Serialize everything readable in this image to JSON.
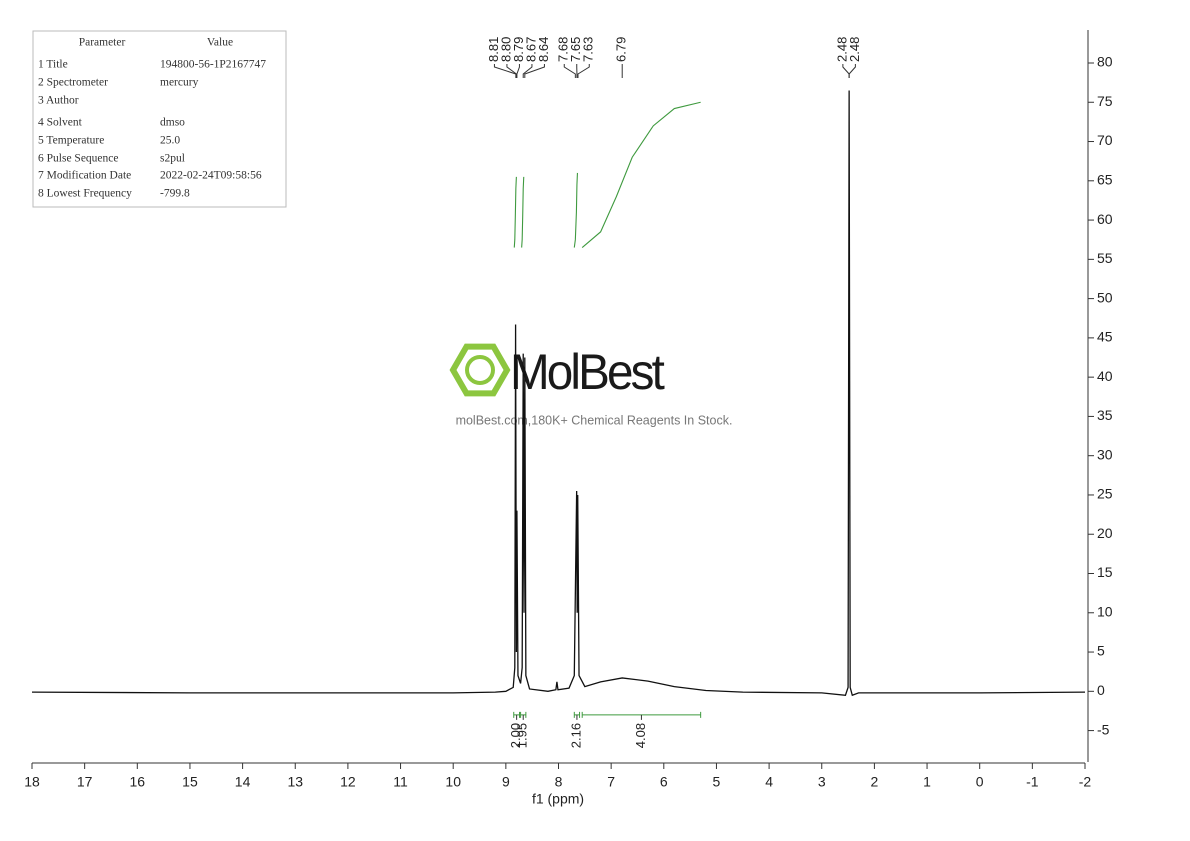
{
  "chart_data": {
    "type": "line",
    "x_label": "f1 (ppm)",
    "xlim": [
      18,
      -2
    ],
    "xticks": [
      18,
      17,
      16,
      15,
      14,
      13,
      12,
      11,
      10,
      9,
      8,
      7,
      6,
      5,
      4,
      3,
      2,
      1,
      0,
      -1,
      -2
    ],
    "ylim": [
      -9,
      84.2
    ],
    "yticks": [
      -5,
      0,
      5,
      10,
      15,
      20,
      25,
      30,
      35,
      40,
      45,
      50,
      55,
      60,
      65,
      70,
      75,
      80
    ],
    "series": [
      {
        "color": "#111111",
        "x": [
          18,
          15,
          12,
          10,
          9.2,
          9.0,
          8.86,
          8.83,
          8.815,
          8.8,
          8.79,
          8.77,
          8.72,
          8.69,
          8.67,
          8.655,
          8.64,
          8.62,
          8.55,
          8.2,
          8.05,
          8.03,
          8.01,
          7.8,
          7.7,
          7.655,
          7.645,
          7.635,
          7.61,
          7.5,
          7.2,
          6.79,
          6.3,
          5.8,
          5.2,
          4.5,
          3.0,
          2.55,
          2.5,
          2.48,
          2.46,
          2.42,
          2.3,
          1,
          0,
          -2
        ],
        "values": [
          -0.1,
          -0.2,
          -0.2,
          -0.2,
          -0.1,
          0,
          0.5,
          3,
          46.7,
          5,
          23,
          2,
          1,
          3,
          43,
          10,
          42.5,
          2,
          0.3,
          0,
          0.2,
          1.2,
          0.2,
          0.4,
          2,
          25.5,
          10,
          25,
          2,
          0.6,
          1.2,
          1.7,
          1.3,
          0.6,
          0.1,
          -0.1,
          -0.2,
          -0.5,
          0.5,
          76.5,
          0.5,
          -0.5,
          -0.2,
          -0.2,
          -0.2,
          -0.1
        ]
      }
    ],
    "peak_labels": {
      "values": [
        8.81,
        8.8,
        8.79,
        8.67,
        8.64,
        7.68,
        7.65,
        7.63,
        6.79,
        2.48,
        2.48
      ],
      "value_labels": [
        "8.81",
        "8.80",
        "8.79",
        "8.67",
        "8.64",
        "7.68",
        "7.65",
        "7.63",
        "6.79",
        "2.48",
        "2.48"
      ]
    },
    "integral_color": "#3f9a3f",
    "integral_curves": [
      {
        "x": [
          8.84,
          8.83,
          8.82,
          8.81,
          8.8
        ],
        "y": [
          56.5,
          57.5,
          60.5,
          64,
          65.5
        ]
      },
      {
        "x": [
          8.7,
          8.69,
          8.68,
          8.67,
          8.66
        ],
        "y": [
          56.5,
          57.5,
          60.5,
          64,
          65.5
        ]
      },
      {
        "x": [
          7.7,
          7.68,
          7.66,
          7.65,
          7.64
        ],
        "y": [
          56.5,
          57.5,
          61,
          64.5,
          66
        ]
      },
      {
        "x": [
          7.55,
          7.2,
          6.9,
          6.6,
          6.2,
          5.8,
          5.3
        ],
        "y": [
          56.5,
          58.5,
          63,
          68,
          72,
          74.2,
          75
        ]
      }
    ],
    "integrals": {
      "level": -3,
      "ranges": [
        [
          8.85,
          8.74
        ],
        [
          8.72,
          8.62
        ],
        [
          7.7,
          7.6
        ],
        [
          7.55,
          5.3
        ]
      ],
      "values": [
        2.0,
        1.95,
        2.16,
        4.08
      ],
      "value_labels": [
        "2.00",
        "1.95",
        "2.16",
        "4.08"
      ]
    }
  },
  "parameter_table": {
    "header": [
      "Parameter",
      "Value"
    ],
    "rows": [
      [
        "1 Title",
        "194800-56-1P2167747"
      ],
      [
        "2 Spectrometer",
        "mercury"
      ],
      [
        "3 Author",
        ""
      ],
      [
        "4 Solvent",
        "dmso"
      ],
      [
        "5 Temperature",
        "25.0"
      ],
      [
        "6 Pulse Sequence",
        "s2pul"
      ],
      [
        "7 Modification Date",
        "2022-02-24T09:58:56"
      ],
      [
        "8 Lowest Frequency",
        "-799.8"
      ]
    ]
  },
  "watermark": {
    "brand": "MolBest",
    "tagline": "molBest.com,180K+ Chemical Reagents In Stock."
  }
}
